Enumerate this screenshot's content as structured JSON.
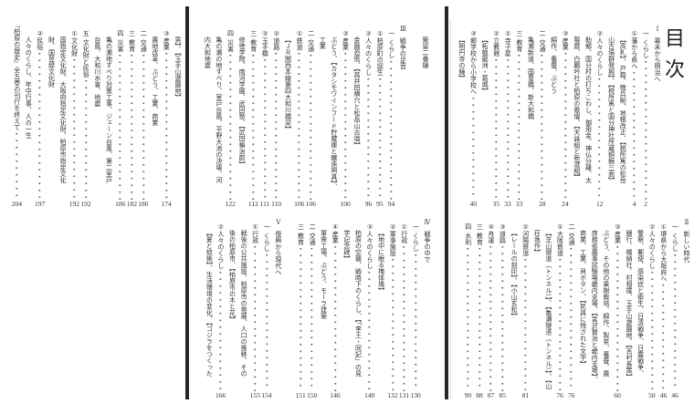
{
  "toc_title": "目次",
  "colors": {
    "text": "#333333",
    "divider": "#262626"
  },
  "panels": {
    "right_top": [
      {
        "k": "part",
        "m": "Ⅰ",
        "t": "幕末から明治へ"
      },
      {
        "k": "sec",
        "m": "一",
        "t": "くらし",
        "p": "2"
      },
      {
        "k": "item",
        "m": "①",
        "t": "藩から県へ",
        "p": "4"
      },
      {
        "k": "desc",
        "t": "【高札】、戸籍、徴兵制、地租改正、【税所篤の松岳"
      },
      {
        "k": "desc",
        "t": "山古墳群発掘】、【税所篤と国分神社所蔵銅鏡三面】"
      },
      {
        "k": "item",
        "m": "②",
        "t": "人々のくらし",
        "p": "12"
      },
      {
        "k": "desc",
        "t": "助郷、国分村の打ちこわし、御用金、神仏分離、太"
      },
      {
        "k": "desc",
        "t": "陽暦、白鵬吟社と柏原の歌壇、【天誅組と新選組】"
      },
      {
        "k": "item",
        "m": "③",
        "t": "産業",
        "p": "24"
      },
      {
        "k": "desc",
        "t": "綿作、養蚕、ぶどう"
      },
      {
        "k": "sec",
        "m": "二",
        "t": "交通",
        "p": "28"
      },
      {
        "k": "desc",
        "t": "亀瀬新道、国豊橋、新大和橋"
      },
      {
        "k": "sec",
        "m": "三",
        "t": "教育",
        "p": "33"
      },
      {
        "k": "item",
        "m": "①",
        "t": "寺子屋",
        "p": "33"
      },
      {
        "k": "item",
        "m": "②",
        "t": "立教館",
        "p": "35"
      },
      {
        "k": "desc",
        "t": "【柘植龍洲・葛城】"
      },
      {
        "k": "item",
        "m": "③",
        "t": "郷学校から小学校へ",
        "p": "40"
      },
      {
        "k": "desc",
        "t": "【明円寺の鐘】"
      }
    ],
    "right_bottom": [
      {
        "k": "part",
        "m": "Ⅱ",
        "t": "新しい時代"
      },
      {
        "k": "sec",
        "m": "一",
        "t": "くらし",
        "p": "46"
      },
      {
        "k": "item",
        "m": "①",
        "t": "堺県から大阪府へ",
        "p": "46"
      },
      {
        "k": "item",
        "m": "②",
        "t": "人々のくらし",
        "p": "50"
      },
      {
        "k": "desc",
        "t": "警察、郵便、感染症と衛生、日清戦争、日露戦争、"
      },
      {
        "k": "desc",
        "t": "銀行、橘納社、村相撲、玉手山遊園地、【吉村長策】"
      },
      {
        "k": "item",
        "m": "③",
        "t": "産業",
        "p": "60"
      },
      {
        "k": "desc",
        "t": "ぶどう、その他の果樹栽培、綿作、製茶、養蚕、農"
      },
      {
        "k": "desc",
        "t": "商務省農事試験場畿内支場、【宮沢賢治と畿内支場】、"
      },
      {
        "k": "desc",
        "t": "商業、工業、貝ボタン、【民具に残された文字】"
      },
      {
        "k": "sec",
        "m": "二",
        "t": "交通",
        "p": "76"
      },
      {
        "k": "item",
        "m": "①",
        "t": "大阪鉄道",
        "p": "76"
      },
      {
        "k": "desc",
        "t": "【芝山隧道（トンネル）】、【亀瀬隧道（トンネル）】、【山"
      },
      {
        "k": "desc",
        "t": "荘逸作】"
      },
      {
        "k": "item",
        "m": "②",
        "t": "河陽鉄道",
        "p": "81"
      },
      {
        "k": "desc",
        "t": "【レールの刻印】、【小山玄松】"
      },
      {
        "k": "item",
        "m": "③",
        "t": "道路",
        "p": "85"
      },
      {
        "k": "item",
        "m": "④",
        "t": "舟運",
        "p": "87"
      },
      {
        "k": "sec",
        "m": "三",
        "t": "教育",
        "p": "88"
      },
      {
        "k": "sec",
        "m": "四",
        "t": "水利",
        "p": "90"
      }
    ],
    "middle_top": [
      {
        "k": "desc",
        "t": "築留二番樋"
      },
      {
        "k": "part",
        "m": "Ⅲ",
        "t": "戦争の足音"
      },
      {
        "k": "sec",
        "m": "一",
        "t": "くらし",
        "p": "94"
      },
      {
        "k": "item",
        "m": "①",
        "t": "柏原町の誕生",
        "p": "95"
      },
      {
        "k": "item",
        "m": "②",
        "t": "人々のくらし",
        "p": "96"
      },
      {
        "k": "desc",
        "t": "金融恐慌、【高井田横穴と松岳山古墳】"
      },
      {
        "k": "item",
        "m": "③",
        "t": "産業",
        "p": "100"
      },
      {
        "k": "desc",
        "t": "ぶどう、【カタシモワインフード貯蔵庫と醸造用具】、"
      },
      {
        "k": "desc",
        "t": "工業"
      },
      {
        "k": "sec",
        "m": "二",
        "t": "交通",
        "p": "106"
      },
      {
        "k": "item",
        "m": "①",
        "t": "鉄道",
        "p": "106"
      },
      {
        "k": "desc",
        "t": "【ＪＲ関西本線第四大和川橋梁】"
      },
      {
        "k": "item",
        "m": "②",
        "t": "道路",
        "p": "110"
      },
      {
        "k": "item",
        "m": "③",
        "t": "玉手橋",
        "p": "111"
      },
      {
        "k": "sec",
        "m": "三",
        "t": "教育",
        "p": "112"
      },
      {
        "k": "desc",
        "t": "修徳学院、南河学園、武田塾、【武田槙治郎】"
      },
      {
        "k": "sec",
        "m": "四",
        "t": "災害",
        "p": "122"
      },
      {
        "k": "desc",
        "t": "亀の瀬の地すべり、室戸台風、平野大池の決壊、河"
      },
      {
        "k": "desc",
        "t": "内大和地震"
      }
    ],
    "middle_bottom": [
      {
        "k": "part",
        "m": "Ⅳ",
        "t": "戦争の中で"
      },
      {
        "k": "sec",
        "m": "一",
        "t": "くらし",
        "p": "130"
      },
      {
        "k": "item",
        "m": "①",
        "t": "行政",
        "p": "131"
      },
      {
        "k": "item",
        "m": "②",
        "t": "軍事施設",
        "p": "132"
      },
      {
        "k": "desc",
        "t": "【地中に眠る掩体壕】"
      },
      {
        "k": "item",
        "m": "③",
        "t": "人々のくらし",
        "p": "140"
      },
      {
        "k": "desc",
        "t": "柏原の空襲、戦時下のくらし、【「李王・同妃」の見"
      },
      {
        "k": "desc",
        "t": "学記念碑】"
      },
      {
        "k": "item",
        "m": "④",
        "t": "産業",
        "p": "146"
      },
      {
        "k": "desc",
        "t": "軍需工場、ぶどう、モーラ建築"
      },
      {
        "k": "sec",
        "m": "二",
        "t": "交通",
        "p": "150"
      },
      {
        "k": "sec",
        "m": "三",
        "t": "教育",
        "p": "151"
      },
      {
        "k": "part",
        "m": "Ⅴ",
        "t": "復興から現代へ"
      },
      {
        "k": "sec",
        "m": "一",
        "t": "くらし",
        "p": "154"
      },
      {
        "k": "item",
        "m": "①",
        "t": "行政",
        "p": "155"
      },
      {
        "k": "desc",
        "t": "戦後の公共施設、柏原市の発展、人口の推移、その"
      },
      {
        "k": "desc",
        "t": "後の柏原市、【柏原市の木と花】"
      },
      {
        "k": "item",
        "m": "②",
        "t": "人々のくらし",
        "p": "166"
      },
      {
        "k": "desc",
        "t": "【夏と蚊帳】、生活環境の変化、【ゴジラをつくった"
      }
    ],
    "left_top": [
      {
        "k": "desc",
        "t": "男】、【玉手山遊園地】"
      },
      {
        "k": "item",
        "m": "③",
        "t": "産業",
        "p": "174"
      },
      {
        "k": "desc",
        "t": "農地改革、ぶどう、工業、商業"
      },
      {
        "k": "sec",
        "m": "二",
        "t": "交通",
        "p": "180"
      },
      {
        "k": "sec",
        "m": "三",
        "t": "教育",
        "p": "182"
      },
      {
        "k": "sec",
        "m": "四",
        "t": "災害",
        "p": "186"
      },
      {
        "k": "desc",
        "t": "亀の瀬地すべり対策工事、ジェーン台風、第二室戸"
      },
      {
        "k": "desc",
        "t": "台風、大和川水害、地震"
      },
      {
        "k": "sec",
        "m": "五",
        "t": "文化財と民俗",
        "p": "192"
      },
      {
        "k": "item",
        "m": "①",
        "t": "文化財",
        "p": "192"
      },
      {
        "k": "desc",
        "t": "国指定文化財、大阪府指定文化財、柏原市指定文化"
      },
      {
        "k": "desc",
        "t": "財、国登録文化財"
      },
      {
        "k": "item",
        "m": "②",
        "t": "民俗",
        "p": "197"
      },
      {
        "k": "desc",
        "t": "人々のくらし、年中行事、人の一生"
      },
      {
        "k": "cont",
        "t": "『柏原の歴史』全五巻の刊行を終えて",
        "p": "204"
      }
    ]
  }
}
